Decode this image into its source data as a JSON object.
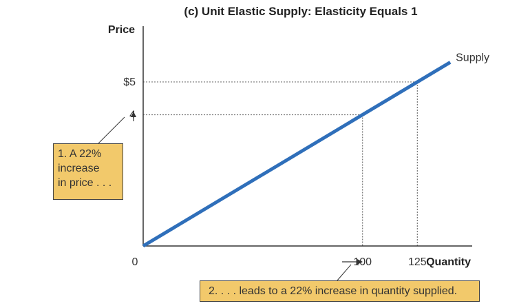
{
  "chart_data": {
    "type": "line",
    "title": "(c) Unit Elastic Supply: Elasticity Equals 1",
    "xlabel": "Quantity",
    "ylabel": "Price",
    "xlim": [
      0,
      150
    ],
    "ylim": [
      0,
      6.7
    ],
    "grid": false,
    "series": [
      {
        "name": "Supply",
        "color": "#2f6fba",
        "x": [
          0,
          140
        ],
        "y": [
          0,
          5.6
        ]
      }
    ],
    "x_ticks": [
      {
        "value": 0,
        "label": "0"
      },
      {
        "value": 100,
        "label": "100"
      },
      {
        "value": 125,
        "label": "125"
      }
    ],
    "y_ticks": [
      {
        "value": 5,
        "label": "$5"
      },
      {
        "value": 4,
        "label": "4"
      }
    ],
    "guide_points": [
      {
        "x": 100,
        "y": 4
      },
      {
        "x": 125,
        "y": 5
      }
    ],
    "annotations": {
      "price_callout": [
        "1. A 22%",
        "increase",
        "in price . . ."
      ],
      "quantity_callout": "2. . . . leads to a 22% increase in quantity supplied."
    }
  },
  "colors": {
    "supply_line": "#2f6fba",
    "callout_fill": "#f2c96b",
    "axis": "#333333",
    "guide": "#777777"
  }
}
